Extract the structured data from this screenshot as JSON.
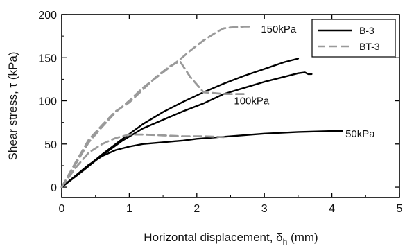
{
  "chart_data": {
    "type": "line",
    "title": "",
    "xlabel": "Horizontal displacement, δh (mm)",
    "ylabel": "Shear stress, τ (kPa)",
    "xlabel_parts": {
      "main": "Horizontal displacement, δ",
      "sub": "h",
      "unit": " (mm)"
    },
    "xlim": [
      0,
      5
    ],
    "ylim": [
      -12,
      200
    ],
    "xticks": [
      "0",
      "1",
      "2",
      "3",
      "4",
      "5"
    ],
    "yticks": [
      "0",
      "50",
      "100",
      "150",
      "200"
    ],
    "grid": false,
    "legend": "top-right",
    "series": [
      {
        "name": "B-3",
        "style": "solid",
        "color": "#000000",
        "group": "50kPa",
        "x": [
          0,
          0.2,
          0.4,
          0.6,
          0.8,
          1.0,
          1.2,
          1.5,
          1.8,
          2.0,
          2.5,
          3.0,
          3.5,
          4.0,
          4.15
        ],
        "y": [
          0,
          13,
          26,
          36,
          43,
          47,
          50,
          52,
          54,
          56,
          59,
          62,
          64,
          65,
          65
        ]
      },
      {
        "name": "B-3",
        "style": "solid",
        "color": "#000000",
        "group": "100kPa",
        "x": [
          0,
          0.3,
          0.6,
          0.9,
          1.2,
          1.5,
          1.8,
          2.1,
          2.4,
          2.7,
          3.0,
          3.3,
          3.5,
          3.6,
          3.65,
          3.7
        ],
        "y": [
          0,
          18,
          37,
          54,
          68,
          78,
          88,
          97,
          108,
          115,
          122,
          128,
          132,
          133,
          131,
          131
        ]
      },
      {
        "name": "B-3",
        "style": "solid",
        "color": "#000000",
        "group": "150kPa",
        "x": [
          0,
          0.3,
          0.6,
          0.9,
          1.2,
          1.5,
          1.8,
          2.1,
          2.4,
          2.7,
          3.0,
          3.3,
          3.5
        ],
        "y": [
          0,
          19,
          38,
          56,
          73,
          87,
          99,
          110,
          120,
          129,
          137,
          145,
          149
        ]
      },
      {
        "name": "BT-3",
        "style": "dashed",
        "color": "#9a9a9a",
        "group": "50kPa",
        "x": [
          0,
          0.2,
          0.4,
          0.6,
          0.8,
          1.0,
          1.2,
          1.5,
          1.8,
          2.1,
          2.4
        ],
        "y": [
          0,
          22,
          40,
          50,
          57,
          61,
          61,
          60,
          59,
          59,
          58
        ]
      },
      {
        "name": "BT-3",
        "style": "dashed",
        "color": "#9a9a9a",
        "group": "100kPa",
        "x": [
          0,
          0.2,
          0.4,
          0.6,
          0.8,
          1.0,
          1.2,
          1.4,
          1.6,
          1.75,
          1.9,
          2.1,
          2.4,
          2.7
        ],
        "y": [
          0,
          28,
          55,
          72,
          88,
          98,
          113,
          128,
          140,
          146,
          128,
          110,
          108,
          108
        ]
      },
      {
        "name": "BT-3",
        "style": "dashed",
        "color": "#9a9a9a",
        "group": "150kPa",
        "x": [
          0,
          0.2,
          0.4,
          0.6,
          0.8,
          1.0,
          1.2,
          1.5,
          1.75,
          1.9,
          2.1,
          2.3,
          2.4,
          2.5,
          2.7,
          2.8
        ],
        "y": [
          0,
          26,
          52,
          70,
          87,
          100,
          115,
          133,
          148,
          158,
          170,
          180,
          184,
          185,
          186,
          186
        ]
      }
    ],
    "annotations": [
      {
        "text": "150kPa",
        "x": 2.95,
        "y": 183
      },
      {
        "text": "100kPa",
        "x": 2.55,
        "y": 100
      },
      {
        "text": "50kPa",
        "x": 4.2,
        "y": 62
      }
    ]
  }
}
